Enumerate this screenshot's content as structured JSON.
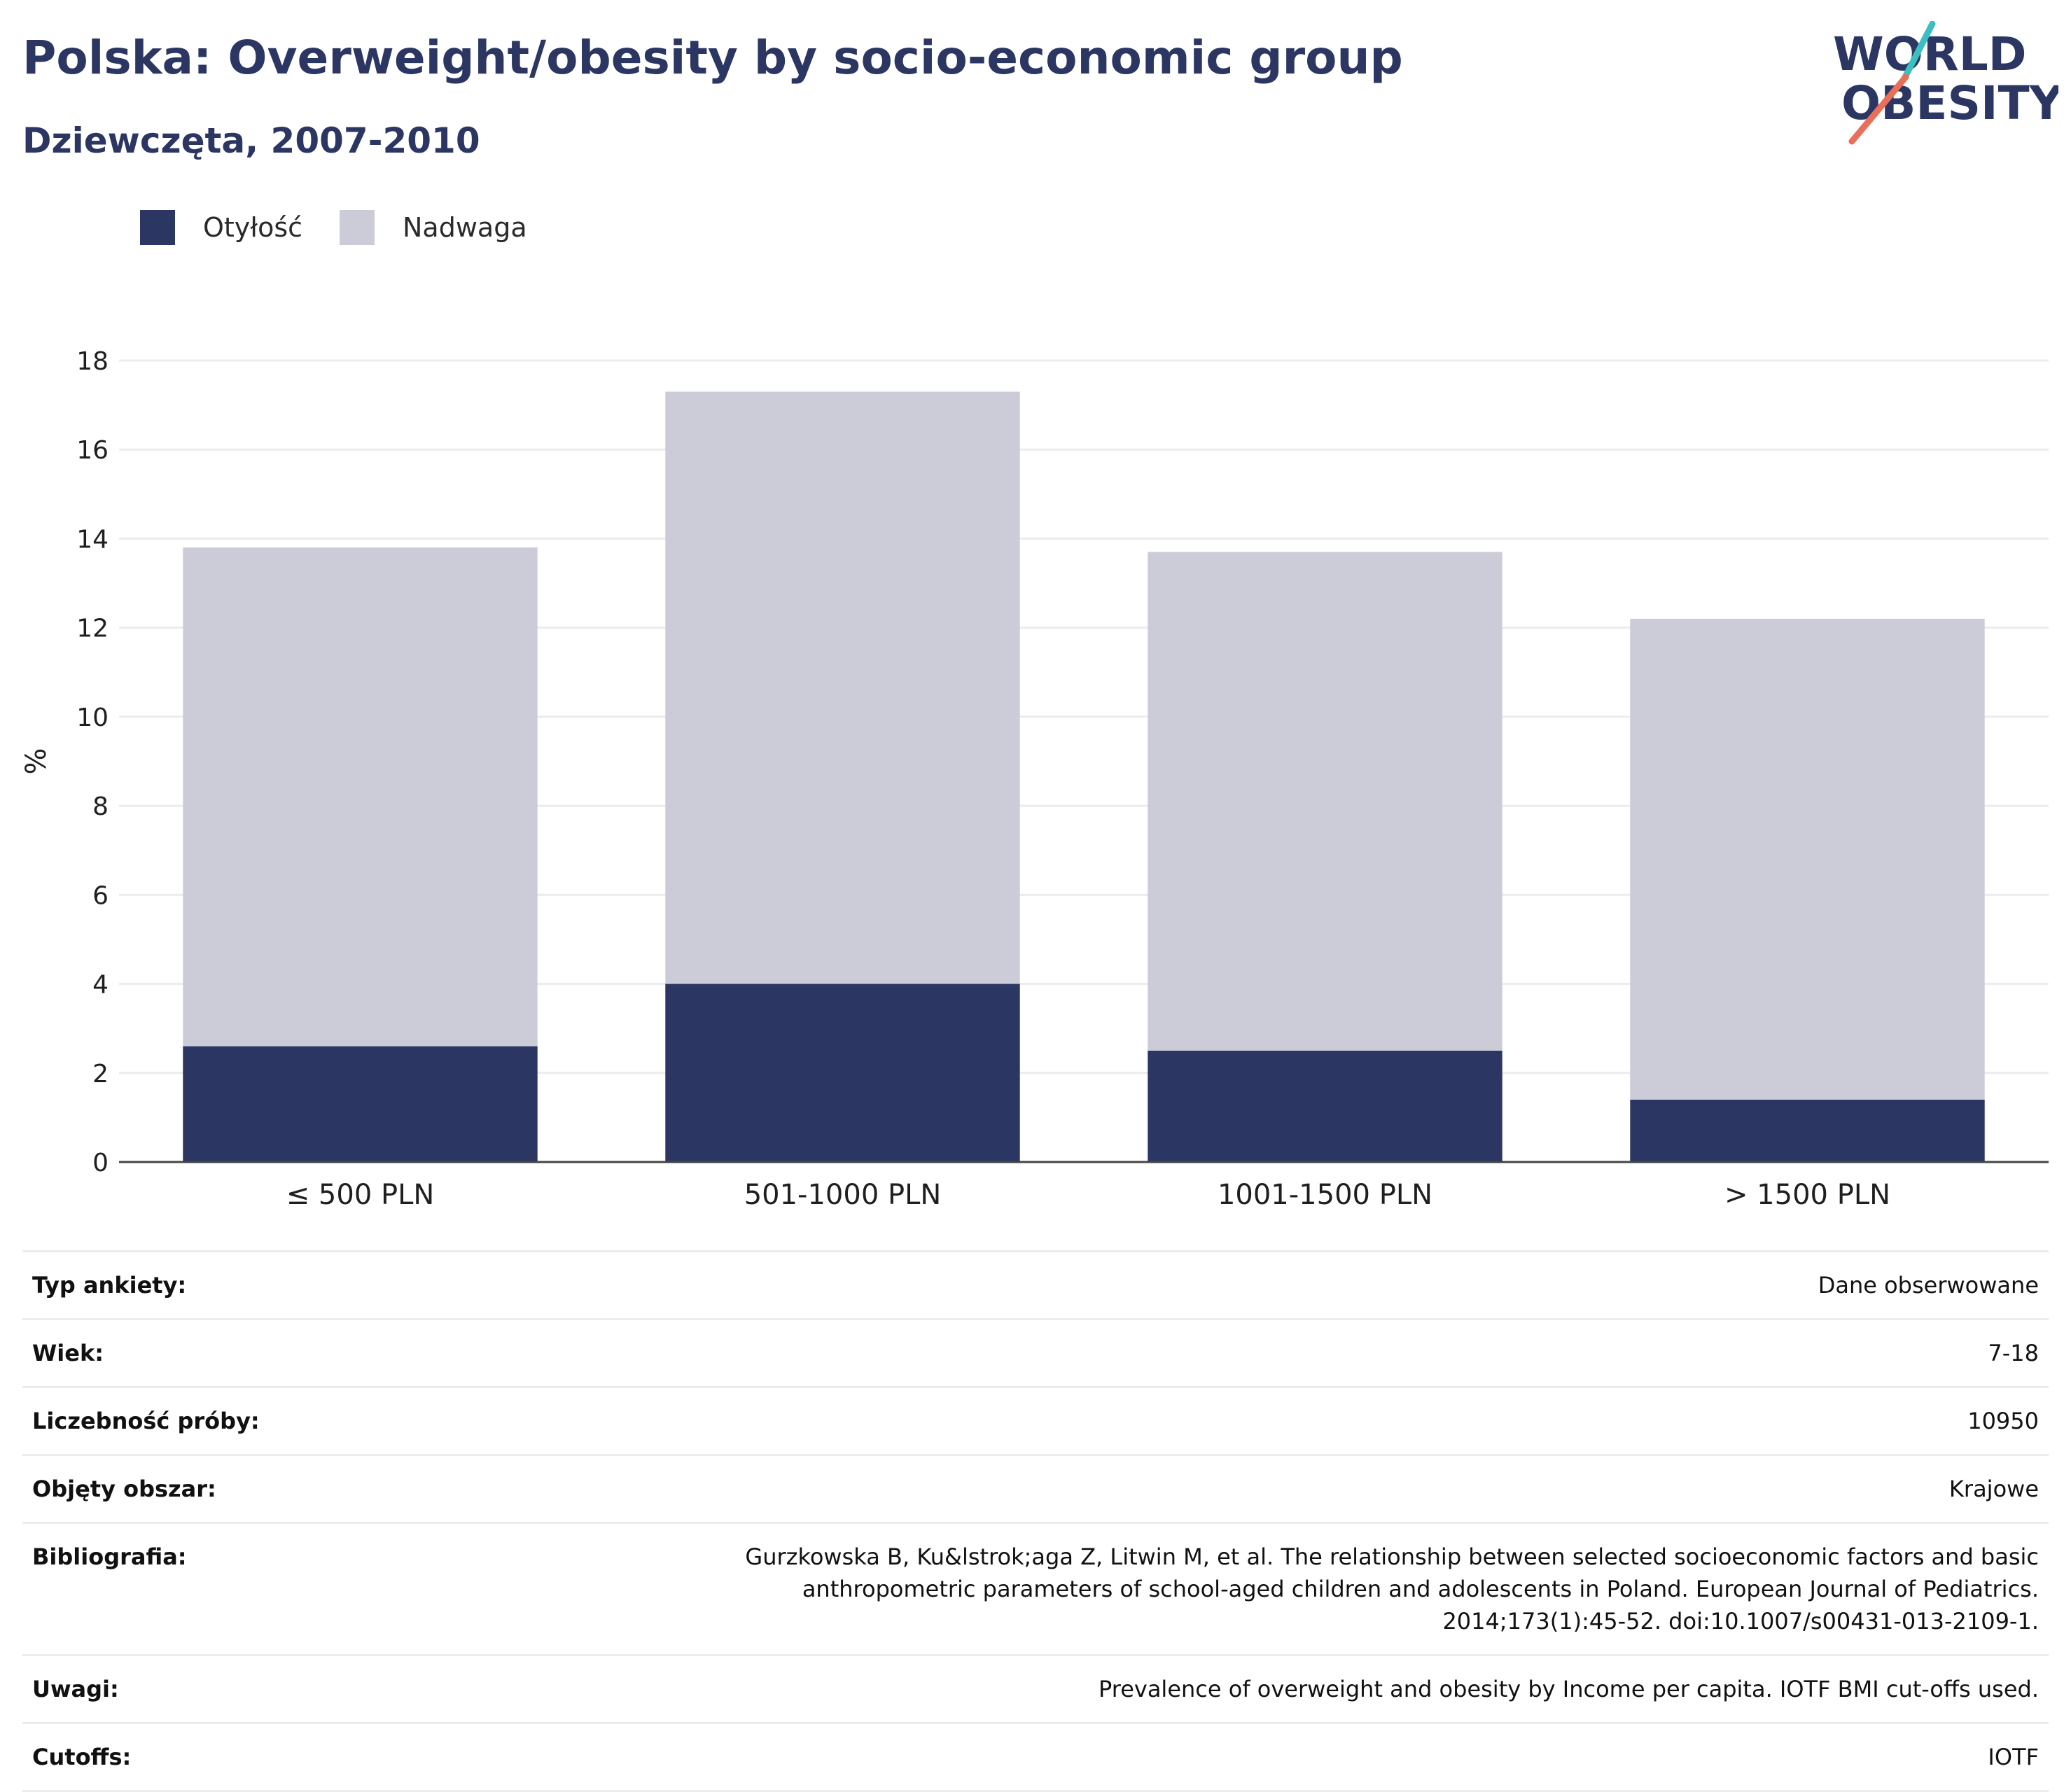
{
  "header": {
    "title": "Polska: Overweight/obesity by socio-economic group",
    "subtitle": "Dziewczęta, 2007-2010"
  },
  "logo": {
    "line1": "WORLD",
    "line2": "OBESITY",
    "text_color": "#2b3663",
    "accent_teal": "#3bbfc0",
    "accent_coral": "#e8705a"
  },
  "legend": {
    "items": [
      {
        "label": "Otyłość",
        "color": "#2b3663"
      },
      {
        "label": "Nadwaga",
        "color": "#cbccd8"
      }
    ]
  },
  "chart_data": {
    "type": "bar",
    "stacked": true,
    "categories": [
      "≤ 500 PLN",
      "501-1000 PLN",
      "1001-1500 PLN",
      "> 1500 PLN"
    ],
    "series": [
      {
        "name": "Otyłość",
        "color": "#2b3663",
        "values": [
          2.6,
          4.0,
          2.5,
          1.4
        ]
      },
      {
        "name": "Nadwaga",
        "color": "#cbccd8",
        "values": [
          11.2,
          13.3,
          11.2,
          10.8
        ]
      }
    ],
    "ylabel": "%",
    "ylim": [
      0,
      18
    ],
    "yticks": [
      0,
      2,
      4,
      6,
      8,
      10,
      12,
      14,
      16,
      18
    ],
    "grid": true,
    "legend_position": "top-left"
  },
  "info": {
    "rows": [
      {
        "label": "Typ ankiety:",
        "value": "Dane obserwowane"
      },
      {
        "label": "Wiek:",
        "value": "7-18"
      },
      {
        "label": "Liczebność próby:",
        "value": "10950"
      },
      {
        "label": "Objęty obszar:",
        "value": "Krajowe"
      },
      {
        "label": "Bibliografia:",
        "value": "Gurzkowska B, Ku&lstrok;aga Z, Litwin M, et al. The relationship between selected socioeconomic factors and basic anthropometric parameters of school-aged children and adolescents in Poland. European Journal of Pediatrics. 2014;173(1):45-52. doi:10.1007/s00431-013-2109-1."
      },
      {
        "label": "Uwagi:",
        "value": "Prevalence of overweight and obesity by Income per capita. IOTF BMI cut-offs used."
      },
      {
        "label": "Cutoffs:",
        "value": "IOTF"
      }
    ]
  }
}
